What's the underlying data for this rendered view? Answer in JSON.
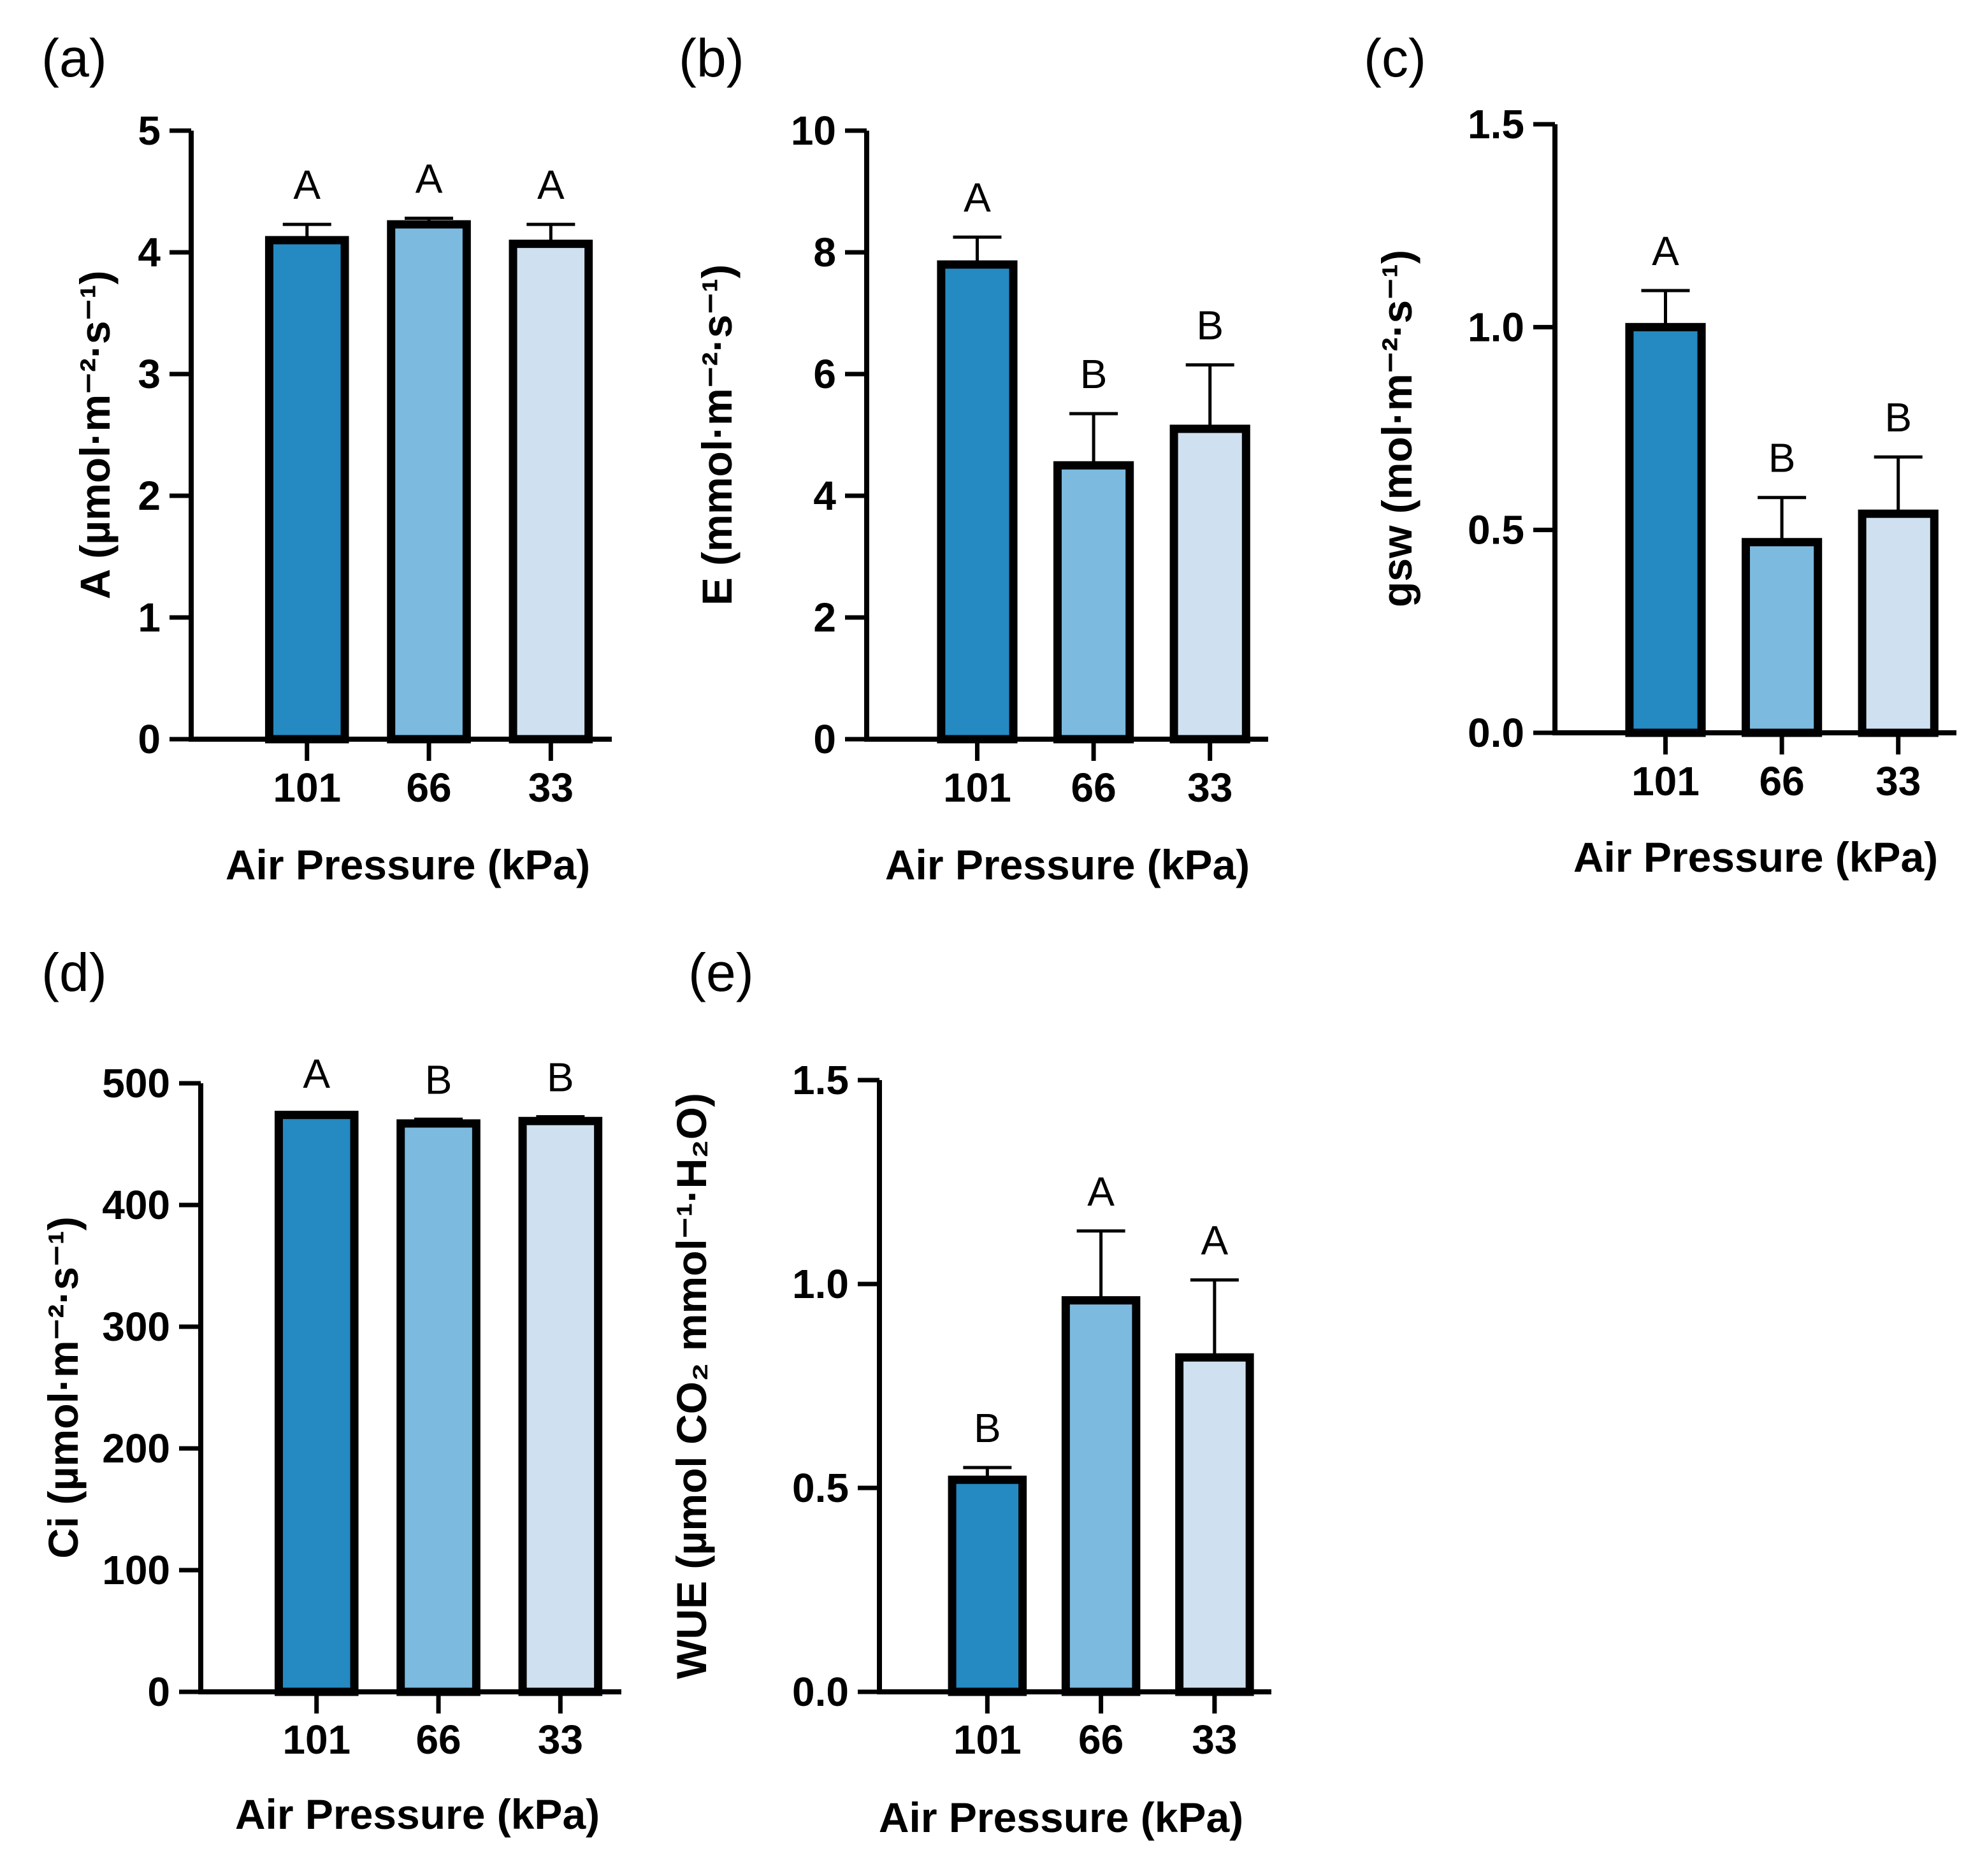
{
  "chart_data": [
    {
      "panel_label": "(a)",
      "type": "bar",
      "categories": [
        "101",
        "66",
        "33"
      ],
      "values": [
        4.1,
        4.23,
        4.07
      ],
      "errors": [
        0.13,
        0.05,
        0.16
      ],
      "significance": [
        "A",
        "A",
        "A"
      ],
      "xlabel": "Air Pressure (kPa)",
      "ylabel": "A (µmol·m⁻²·s⁻¹)",
      "ylim": [
        0,
        5
      ],
      "yticks": [
        "0",
        "1",
        "2",
        "3",
        "4",
        "5"
      ],
      "colors": [
        "#2589c2",
        "#7cbadf",
        "#cfe0f0"
      ]
    },
    {
      "panel_label": "(b)",
      "type": "bar",
      "categories": [
        "101",
        "66",
        "33"
      ],
      "values": [
        7.8,
        4.5,
        5.1
      ],
      "errors": [
        0.45,
        0.85,
        1.05
      ],
      "significance": [
        "A",
        "B",
        "B"
      ],
      "xlabel": "Air Pressure (kPa)",
      "ylabel": "E (mmol·m⁻²·s⁻¹)",
      "ylim": [
        0,
        10
      ],
      "yticks": [
        "0",
        "2",
        "4",
        "6",
        "8",
        "10"
      ],
      "colors": [
        "#2589c2",
        "#7cbadf",
        "#cfe0f0"
      ]
    },
    {
      "panel_label": "(c)",
      "type": "bar",
      "categories": [
        "101",
        "66",
        "33"
      ],
      "values": [
        1.0,
        0.47,
        0.54
      ],
      "errors": [
        0.09,
        0.11,
        0.14
      ],
      "significance": [
        "A",
        "B",
        "B"
      ],
      "xlabel": "Air Pressure (kPa)",
      "ylabel": "gsw (mol·m⁻²·s⁻¹)",
      "ylim": [
        0,
        1.5
      ],
      "yticks": [
        "0.0",
        "0.5",
        "1.0",
        "1.5"
      ],
      "colors": [
        "#2589c2",
        "#7cbadf",
        "#cfe0f0"
      ]
    },
    {
      "panel_label": "(d)",
      "type": "bar",
      "categories": [
        "101",
        "66",
        "33"
      ],
      "values": [
        474,
        467,
        469
      ],
      "errors": [
        1.5,
        3.5,
        3.5
      ],
      "significance": [
        "A",
        "B",
        "B"
      ],
      "xlabel": "Air Pressure (kPa)",
      "ylabel": "Ci (µmol·m⁻²·s⁻¹)",
      "ylim": [
        0,
        500
      ],
      "yticks": [
        "0",
        "100",
        "200",
        "300",
        "400",
        "500"
      ],
      "colors": [
        "#2589c2",
        "#7cbadf",
        "#cfe0f0"
      ]
    },
    {
      "panel_label": "(e)",
      "type": "bar",
      "categories": [
        "101",
        "66",
        "33"
      ],
      "values": [
        0.52,
        0.96,
        0.82
      ],
      "errors": [
        0.03,
        0.17,
        0.19
      ],
      "significance": [
        "B",
        "A",
        "A"
      ],
      "xlabel": "Air Pressure (kPa)",
      "ylabel": "WUE (µmol CO₂ mmol⁻¹·H₂O)",
      "ylim": [
        0,
        1.5
      ],
      "yticks": [
        "0.0",
        "0.5",
        "1.0",
        "1.5"
      ],
      "colors": [
        "#2589c2",
        "#7cbadf",
        "#cfe0f0"
      ]
    }
  ]
}
